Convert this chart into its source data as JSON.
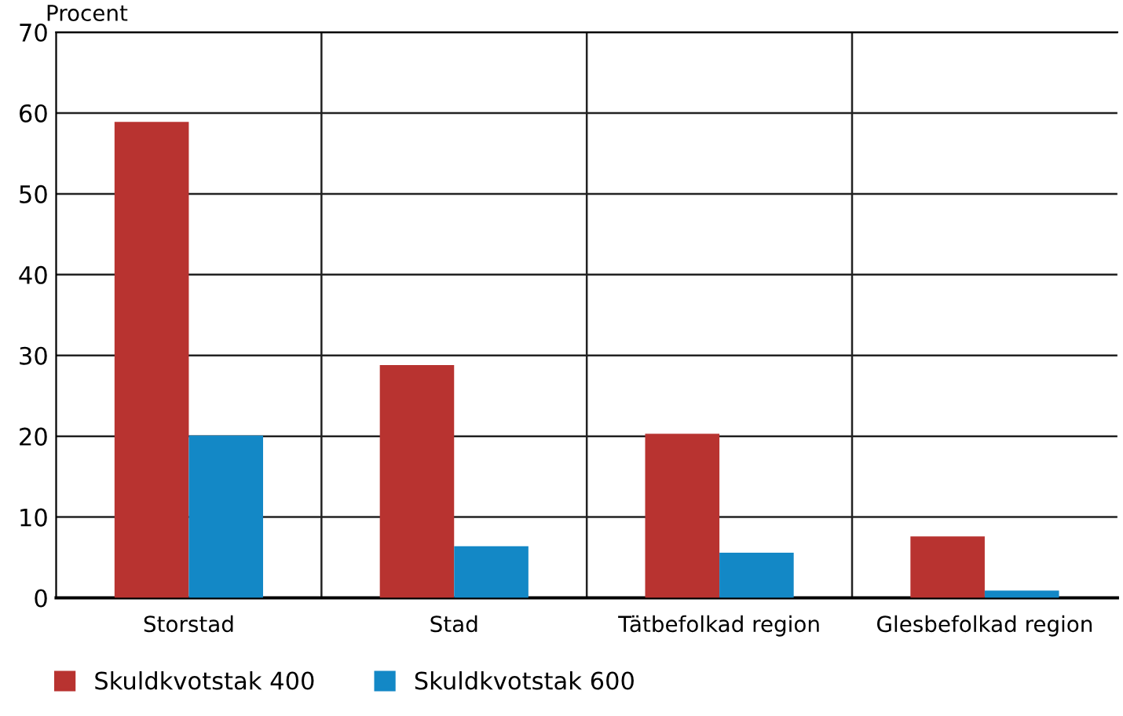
{
  "chart_data": {
    "type": "bar",
    "ylabel": "Procent",
    "categories": [
      "Storstad",
      "Stad",
      "Tätbefolkad region",
      "Glesbefolkad region"
    ],
    "series": [
      {
        "name": "Skuldkvotstak 400",
        "color": "#b83330",
        "values": [
          58.9,
          28.8,
          20.3,
          7.6
        ]
      },
      {
        "name": "Skuldkvotstak 600",
        "color": "#1388c6",
        "values": [
          20.1,
          6.4,
          5.6,
          0.9
        ]
      }
    ],
    "ylim": [
      0,
      70
    ],
    "yticks": [
      0,
      10,
      20,
      30,
      40,
      50,
      60,
      70
    ],
    "grid": true,
    "legend": "bottom left"
  }
}
